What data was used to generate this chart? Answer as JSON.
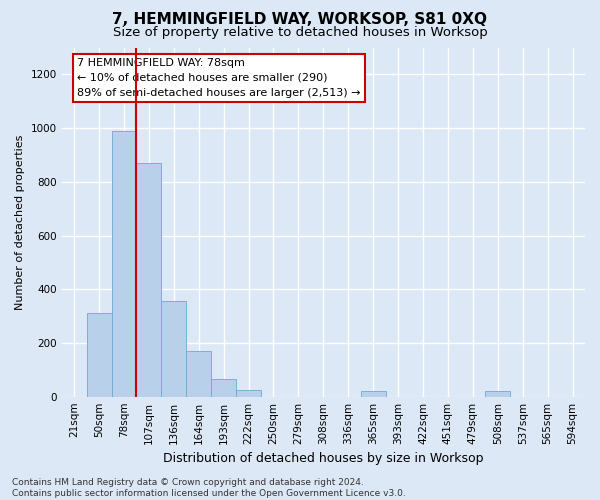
{
  "title": "7, HEMMINGFIELD WAY, WORKSOP, S81 0XQ",
  "subtitle": "Size of property relative to detached houses in Worksop",
  "xlabel": "Distribution of detached houses by size in Worksop",
  "ylabel": "Number of detached properties",
  "bar_color": "#b8d0ea",
  "bar_edge_color": "#6aaad4",
  "vline_color": "#cc0000",
  "vline_x_index": 2,
  "bin_labels": [
    "21sqm",
    "50sqm",
    "78sqm",
    "107sqm",
    "136sqm",
    "164sqm",
    "193sqm",
    "222sqm",
    "250sqm",
    "279sqm",
    "308sqm",
    "336sqm",
    "365sqm",
    "393sqm",
    "422sqm",
    "451sqm",
    "479sqm",
    "508sqm",
    "537sqm",
    "565sqm",
    "594sqm"
  ],
  "bar_heights": [
    0,
    310,
    990,
    870,
    355,
    170,
    65,
    25,
    0,
    0,
    0,
    0,
    20,
    0,
    0,
    0,
    0,
    20,
    0,
    0,
    0
  ],
  "ylim": [
    0,
    1300
  ],
  "yticks": [
    0,
    200,
    400,
    600,
    800,
    1000,
    1200
  ],
  "annotation_text": "7 HEMMINGFIELD WAY: 78sqm\n← 10% of detached houses are smaller (290)\n89% of semi-detached houses are larger (2,513) →",
  "annotation_box_facecolor": "#ffffff",
  "annotation_box_edgecolor": "#cc0000",
  "footer_text": "Contains HM Land Registry data © Crown copyright and database right 2024.\nContains public sector information licensed under the Open Government Licence v3.0.",
  "background_color": "#dce8f5",
  "plot_background_color": "#dce8f5",
  "grid_color": "#ffffff",
  "title_fontsize": 11,
  "subtitle_fontsize": 9.5,
  "xlabel_fontsize": 9,
  "ylabel_fontsize": 8,
  "tick_fontsize": 7.5,
  "annotation_fontsize": 8,
  "footer_fontsize": 6.5
}
